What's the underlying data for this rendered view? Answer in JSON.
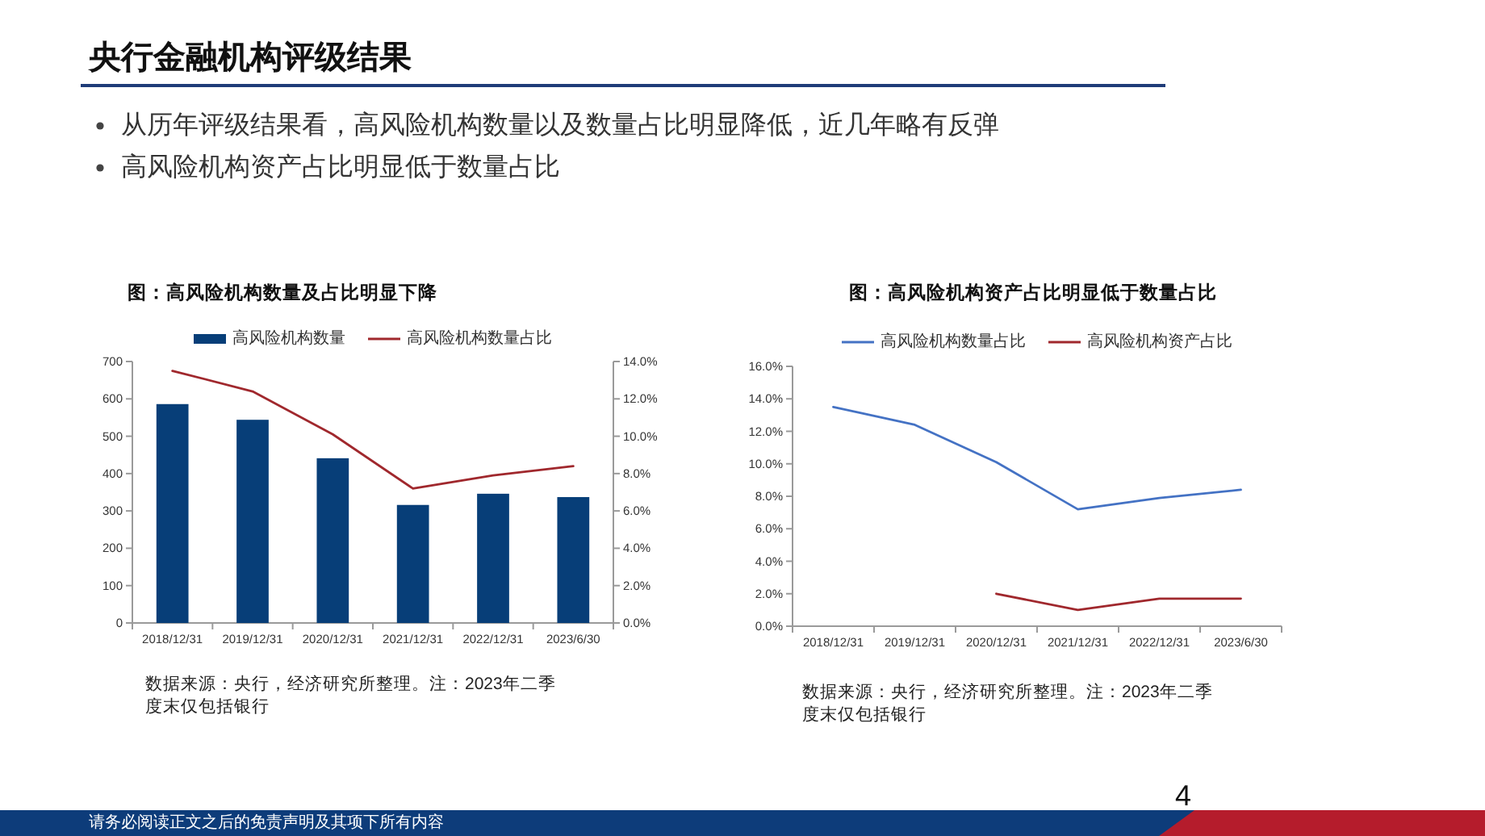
{
  "chart_data": [
    {
      "type": "other",
      "title": "央行金融机构评级结果",
      "annotations": [
        "从历年评级结果看，高风险机构数量以及数量占比明显降低，近几年略有反弹",
        "高风险机构资产占比明显低于数量占比",
        "请务必阅读正文之后的免责声明及其项下所有内容",
        "4"
      ]
    },
    {
      "type": "bar",
      "title": "图：高风险机构数量及占比明显下降",
      "categories": [
        "2018/12/31",
        "2019/12/31",
        "2020/12/31",
        "2021/12/31",
        "2022/12/31",
        "2023/6/30"
      ],
      "series": [
        {
          "name": "高风险机构数量",
          "type": "bar",
          "color": "#073e78",
          "values": [
            586,
            544,
            441,
            316,
            346,
            337
          ]
        },
        {
          "name": "高风险机构数量占比",
          "type": "line",
          "axis": "y2",
          "color": "#a0282d",
          "values": [
            13.5,
            12.4,
            10.1,
            7.2,
            7.9,
            8.4
          ]
        }
      ],
      "ylim": [
        0,
        700
      ],
      "yticks": [
        0,
        100,
        200,
        300,
        400,
        500,
        600,
        700
      ],
      "y2lim": [
        0,
        14
      ],
      "y2ticks": [
        {
          "value": 0,
          "label": "0.0%"
        },
        {
          "value": 2,
          "label": "2.0%"
        },
        {
          "value": 4,
          "label": "4.0%"
        },
        {
          "value": 6,
          "label": "6.0%"
        },
        {
          "value": 8,
          "label": "8.0%"
        },
        {
          "value": 10,
          "label": "10.0%"
        },
        {
          "value": 12,
          "label": "12.0%"
        },
        {
          "value": 14,
          "label": "14.0%"
        }
      ],
      "legend": "top",
      "annotations": [
        "数据来源：央行，经济研究所整理。注：2023年二季度末仅包括银行"
      ]
    },
    {
      "type": "line",
      "title": "图：高风险机构资产占比明显低于数量占比",
      "categories": [
        "2018/12/31",
        "2019/12/31",
        "2020/12/31",
        "2021/12/31",
        "2022/12/31",
        "2023/6/30"
      ],
      "series": [
        {
          "name": "高风险机构数量占比",
          "color": "#4472c4",
          "values": [
            13.5,
            12.4,
            10.1,
            7.2,
            7.9,
            8.4
          ]
        },
        {
          "name": "高风险机构资产占比",
          "color": "#a0282d",
          "values": [
            null,
            null,
            2.0,
            1.0,
            1.7,
            1.7
          ]
        }
      ],
      "ylim": [
        0,
        16
      ],
      "yticks": [
        {
          "value": 0,
          "label": "0.0%"
        },
        {
          "value": 2,
          "label": "2.0%"
        },
        {
          "value": 4,
          "label": "4.0%"
        },
        {
          "value": 6,
          "label": "6.0%"
        },
        {
          "value": 8,
          "label": "8.0%"
        },
        {
          "value": 10,
          "label": "10.0%"
        },
        {
          "value": 12,
          "label": "12.0%"
        },
        {
          "value": 14,
          "label": "14.0%"
        },
        {
          "value": 16,
          "label": "16.0%"
        }
      ],
      "legend": "top",
      "annotations": [
        "数据来源：央行，经济研究所整理。注：2023年二季度末仅包括银行"
      ]
    }
  ]
}
